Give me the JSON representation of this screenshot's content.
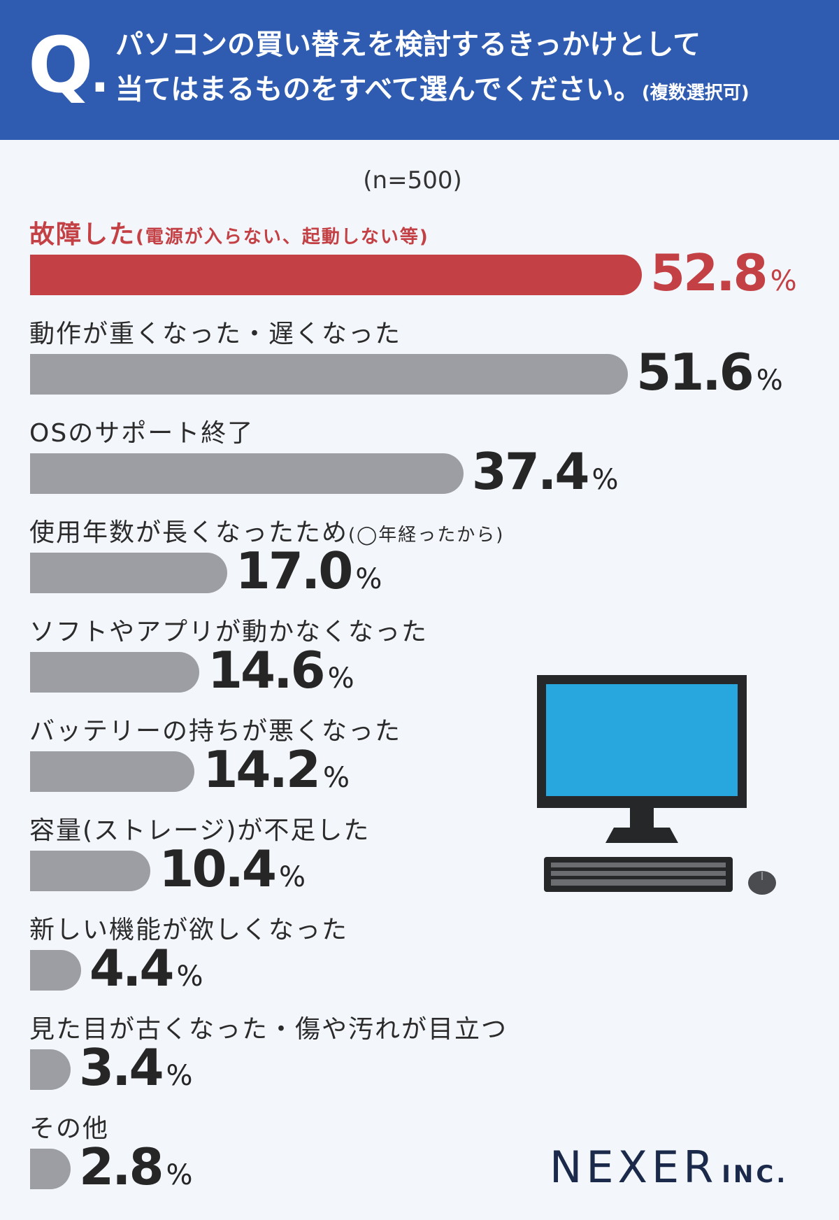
{
  "header": {
    "q_mark": "Q",
    "q_dot": ".",
    "line1": "パソコンの買い替えを検討するきっかけとして",
    "line2": "当てはまるものをすべて選んでください。",
    "line2_note": "(複数選択可)"
  },
  "sample_size": "(n=500)",
  "chart_data": {
    "type": "bar",
    "orientation": "horizontal",
    "xlim": [
      0,
      60
    ],
    "unit": "%",
    "categories": [
      "故障した",
      "動作が重くなった・遅くなった",
      "OSのサポート終了",
      "使用年数が長くなったため",
      "ソフトやアプリが動かなくなった",
      "バッテリーの持ちが悪くなった",
      "容量(ストレージ)が不足した",
      "新しい機能が欲しくなった",
      "見た目が古くなった・傷や汚れが目立つ",
      "その他"
    ],
    "category_notes": [
      "(電源が入らない、起動しない等)",
      "",
      "",
      "(◯年経ったから)",
      "",
      "",
      "",
      "",
      "",
      ""
    ],
    "values": [
      52.8,
      51.6,
      37.4,
      17.0,
      14.6,
      14.2,
      10.4,
      4.4,
      3.4,
      2.8
    ],
    "value_labels": [
      "52.8",
      "51.6",
      "37.4",
      "17.0",
      "14.6",
      "14.2",
      "10.4",
      "4.4",
      "3.4",
      "2.8"
    ],
    "highlight_index": 0,
    "colors": {
      "highlight": "#c34044",
      "default": "#9c9ea4"
    }
  },
  "colors": {
    "header_bg": "#2f5cb0",
    "background": "#f3f6fb"
  },
  "illustration": {
    "icon": "desktop-computer-icon"
  },
  "brand": {
    "name": "NEXER",
    "suffix": "INC."
  }
}
